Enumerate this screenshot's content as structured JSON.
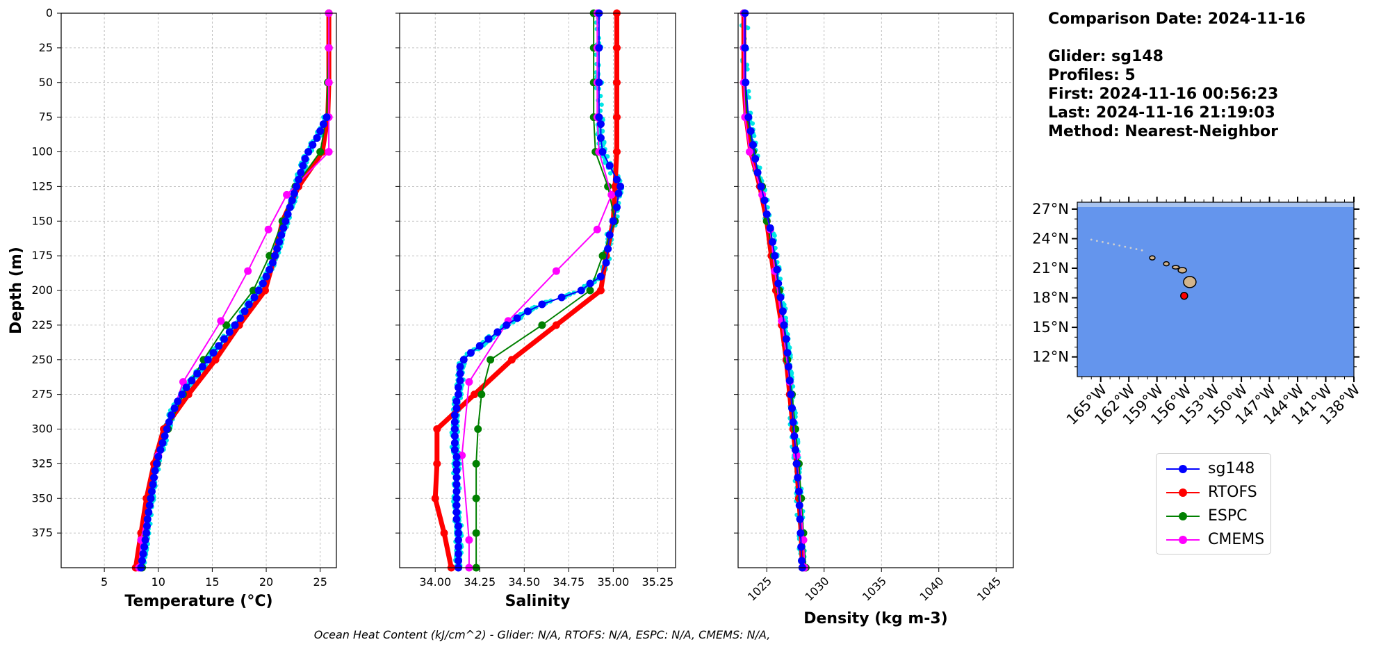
{
  "info": {
    "comparison_date": "Comparison Date: 2024-11-16",
    "glider": "Glider: sg148",
    "profiles": "Profiles: 5",
    "first": "First: 2024-11-16 00:56:23",
    "last": "Last: 2024-11-16 21:19:03",
    "method": "Method: Nearest-Neighbor"
  },
  "footer": "Ocean Heat Content (kJ/cm^2) - Glider: N/A,  RTOFS: N/A,  ESPC: N/A,  CMEMS: N/A,",
  "legend": [
    {
      "label": "sg148",
      "color": "#0000ff"
    },
    {
      "label": "RTOFS",
      "color": "#ff0000"
    },
    {
      "label": "ESPC",
      "color": "#008000"
    },
    {
      "label": "CMEMS",
      "color": "#ff00ff"
    }
  ],
  "chart_data": [
    {
      "type": "line",
      "xlabel": "Temperature (°C)",
      "ylabel": "Depth (m)",
      "xlim": [
        1,
        26.5
      ],
      "ylim": [
        400,
        0
      ],
      "xticks": [
        5,
        10,
        15,
        20,
        25
      ],
      "yticks": [
        0,
        25,
        50,
        75,
        100,
        125,
        150,
        175,
        200,
        225,
        250,
        275,
        300,
        325,
        350,
        375
      ],
      "grid": true,
      "series": [
        {
          "name": "sg148",
          "color": "#0000ff",
          "depth": [
            75,
            80,
            85,
            90,
            95,
            100,
            105,
            110,
            115,
            120,
            125,
            130,
            135,
            140,
            145,
            150,
            155,
            160,
            165,
            170,
            175,
            180,
            185,
            190,
            195,
            200,
            205,
            210,
            215,
            220,
            225,
            230,
            235,
            240,
            245,
            250,
            255,
            260,
            265,
            270,
            275,
            280,
            285,
            290,
            295,
            300,
            305,
            310,
            315,
            320,
            325,
            330,
            335,
            340,
            345,
            350,
            355,
            360,
            365,
            370,
            375,
            380,
            385,
            390,
            395,
            400
          ],
          "values": [
            25.6,
            25.3,
            25.0,
            24.7,
            24.3,
            23.9,
            23.6,
            23.4,
            23.2,
            23.0,
            22.8,
            22.6,
            22.4,
            22.2,
            22.0,
            21.8,
            21.6,
            21.4,
            21.2,
            21.0,
            20.8,
            20.6,
            20.3,
            20.0,
            19.7,
            19.3,
            18.9,
            18.4,
            18.0,
            17.6,
            17.1,
            16.6,
            16.1,
            15.6,
            15.1,
            14.6,
            14.1,
            13.6,
            13.1,
            12.6,
            12.2,
            11.8,
            11.5,
            11.2,
            11.0,
            10.8,
            10.6,
            10.4,
            10.2,
            10.0,
            9.85,
            9.7,
            9.6,
            9.5,
            9.4,
            9.3,
            9.2,
            9.1,
            9.0,
            8.95,
            8.9,
            8.8,
            8.7,
            8.6,
            8.5,
            8.4
          ]
        },
        {
          "name": "RTOFS",
          "color": "#ff0000",
          "depth": [
            0,
            25,
            50,
            75,
            100,
            125,
            150,
            175,
            200,
            225,
            250,
            275,
            300,
            325,
            350,
            375,
            400
          ],
          "values": [
            25.8,
            25.8,
            25.8,
            25.7,
            25.2,
            23.0,
            21.5,
            20.8,
            19.9,
            17.5,
            15.3,
            12.8,
            10.5,
            9.6,
            8.9,
            8.4,
            7.9
          ]
        },
        {
          "name": "ESPC",
          "color": "#008000",
          "depth": [
            0,
            25,
            50,
            75,
            100,
            125,
            150,
            175,
            200,
            225,
            250,
            275,
            300,
            325,
            350,
            375,
            400
          ],
          "values": [
            25.8,
            25.8,
            25.7,
            25.6,
            25.0,
            22.7,
            21.5,
            20.3,
            18.8,
            16.3,
            14.2,
            12.3,
            10.9,
            9.9,
            9.3,
            8.8,
            8.5
          ]
        },
        {
          "name": "CMEMS",
          "color": "#ff00ff",
          "depth": [
            0,
            25,
            50,
            75,
            100,
            131,
            156,
            186,
            222,
            266,
            319,
            380,
            400
          ],
          "values": [
            25.8,
            25.8,
            25.8,
            25.8,
            25.8,
            21.9,
            20.2,
            18.3,
            15.8,
            12.3,
            10.0,
            8.4,
            8.2
          ]
        }
      ]
    },
    {
      "type": "line",
      "xlabel": "Salinity",
      "ylim": [
        400,
        0
      ],
      "xlim": [
        33.8,
        35.35
      ],
      "xticks": [
        34.0,
        34.25,
        34.5,
        34.75,
        35.0,
        35.25
      ],
      "xticklabels": [
        "34.00",
        "34.25",
        "34.50",
        "34.75",
        "35.00",
        "35.25"
      ],
      "grid": true,
      "series": [
        {
          "name": "sg148",
          "color": "#0000ff",
          "depth": [
            0,
            25,
            50,
            75,
            80,
            90,
            100,
            110,
            120,
            125,
            130,
            140,
            150,
            160,
            170,
            180,
            190,
            195,
            200,
            205,
            210,
            215,
            220,
            225,
            230,
            235,
            240,
            245,
            250,
            255,
            260,
            265,
            270,
            275,
            280,
            285,
            290,
            295,
            300,
            305,
            310,
            315,
            320,
            325,
            330,
            335,
            340,
            345,
            350,
            355,
            360,
            365,
            370,
            375,
            380,
            385,
            390,
            395,
            400
          ],
          "values": [
            34.92,
            34.92,
            34.92,
            34.92,
            34.93,
            34.93,
            34.94,
            34.98,
            35.02,
            35.04,
            35.03,
            35.02,
            35.0,
            34.98,
            34.97,
            34.96,
            34.93,
            34.87,
            34.82,
            34.71,
            34.6,
            34.52,
            34.46,
            34.4,
            34.35,
            34.3,
            34.25,
            34.2,
            34.16,
            34.14,
            34.14,
            34.14,
            34.13,
            34.13,
            34.12,
            34.12,
            34.11,
            34.11,
            34.11,
            34.11,
            34.11,
            34.11,
            34.12,
            34.12,
            34.12,
            34.12,
            34.12,
            34.12,
            34.12,
            34.12,
            34.12,
            34.12,
            34.13,
            34.13,
            34.13,
            34.13,
            34.13,
            34.13,
            34.13
          ]
        },
        {
          "name": "RTOFS",
          "color": "#ff0000",
          "depth": [
            0,
            25,
            50,
            75,
            100,
            125,
            150,
            175,
            200,
            225,
            250,
            275,
            300,
            325,
            350,
            375,
            400
          ],
          "values": [
            35.02,
            35.02,
            35.02,
            35.02,
            35.02,
            35.01,
            35.0,
            34.96,
            34.93,
            34.68,
            34.43,
            34.22,
            34.01,
            34.01,
            34.0,
            34.05,
            34.09
          ]
        },
        {
          "name": "ESPC",
          "color": "#008000",
          "depth": [
            0,
            25,
            50,
            75,
            100,
            125,
            150,
            175,
            200,
            225,
            250,
            275,
            300,
            325,
            350,
            375,
            400
          ],
          "values": [
            34.89,
            34.89,
            34.89,
            34.89,
            34.9,
            34.97,
            35.01,
            34.94,
            34.87,
            34.6,
            34.31,
            34.26,
            34.24,
            34.23,
            34.23,
            34.23,
            34.23
          ]
        },
        {
          "name": "CMEMS",
          "color": "#ff00ff",
          "depth": [
            0,
            25,
            50,
            75,
            100,
            131,
            156,
            186,
            222,
            266,
            319,
            380,
            400
          ],
          "values": [
            34.91,
            34.91,
            34.91,
            34.91,
            34.92,
            34.99,
            34.91,
            34.68,
            34.41,
            34.19,
            34.15,
            34.19,
            34.19
          ]
        }
      ]
    },
    {
      "type": "line",
      "xlabel": "Density (kg m-3)",
      "ylim": [
        400,
        0
      ],
      "xlim": [
        1022.5,
        1046.5
      ],
      "xticks": [
        1025,
        1030,
        1035,
        1040,
        1045
      ],
      "xticklabels": [
        "1025",
        "1030",
        "1035",
        "1040",
        "1045"
      ],
      "grid": true,
      "series": [
        {
          "name": "sg148",
          "color": "#0000ff",
          "depth": [
            0,
            25,
            50,
            75,
            85,
            95,
            105,
            115,
            125,
            135,
            145,
            155,
            165,
            175,
            185,
            195,
            205,
            215,
            225,
            235,
            245,
            255,
            265,
            275,
            285,
            295,
            305,
            315,
            325,
            335,
            345,
            355,
            365,
            375,
            385,
            395,
            400
          ],
          "values": [
            1023.1,
            1023.1,
            1023.15,
            1023.4,
            1023.6,
            1023.8,
            1024.0,
            1024.2,
            1024.5,
            1024.8,
            1025.0,
            1025.3,
            1025.5,
            1025.7,
            1025.9,
            1026.0,
            1026.2,
            1026.4,
            1026.5,
            1026.7,
            1026.8,
            1026.9,
            1027.0,
            1027.1,
            1027.2,
            1027.3,
            1027.4,
            1027.5,
            1027.6,
            1027.7,
            1027.8,
            1027.85,
            1027.9,
            1027.95,
            1028.0,
            1028.05,
            1028.1
          ]
        },
        {
          "name": "RTOFS",
          "color": "#ff0000",
          "depth": [
            0,
            25,
            50,
            75,
            100,
            125,
            150,
            175,
            200,
            225,
            250,
            275,
            300,
            325,
            350,
            375,
            400
          ],
          "values": [
            1023.0,
            1023.0,
            1023.0,
            1023.2,
            1023.6,
            1024.4,
            1025.0,
            1025.4,
            1025.8,
            1026.3,
            1026.7,
            1027.0,
            1027.3,
            1027.6,
            1027.8,
            1028.0,
            1028.1
          ]
        },
        {
          "name": "ESPC",
          "color": "#008000",
          "depth": [
            0,
            25,
            50,
            75,
            100,
            125,
            150,
            175,
            200,
            225,
            250,
            275,
            300,
            325,
            350,
            375,
            400
          ],
          "values": [
            1023.0,
            1023.0,
            1023.05,
            1023.3,
            1023.8,
            1024.6,
            1025.0,
            1025.6,
            1026.1,
            1026.5,
            1026.8,
            1027.2,
            1027.5,
            1027.8,
            1028.0,
            1028.2,
            1028.4
          ]
        },
        {
          "name": "CMEMS",
          "color": "#ff00ff",
          "depth": [
            0,
            25,
            50,
            75,
            100,
            131,
            156,
            186,
            222,
            266,
            319,
            380,
            400
          ],
          "values": [
            1023.0,
            1023.0,
            1023.0,
            1023.1,
            1023.5,
            1024.6,
            1025.3,
            1025.7,
            1026.3,
            1027.0,
            1027.6,
            1028.2,
            1028.3
          ]
        }
      ]
    }
  ],
  "map": {
    "lat_ticks": [
      "27°N",
      "24°N",
      "21°N",
      "18°N",
      "15°N",
      "12°N"
    ],
    "lon_ticks": [
      "165°W",
      "162°W",
      "159°W",
      "156°W",
      "153°W",
      "150°W",
      "147°W",
      "144°W",
      "141°W",
      "138°W"
    ],
    "ocean_color": "#6495ed",
    "land_color": "#d2b48c",
    "glider_marker_color": "#ff0000"
  }
}
